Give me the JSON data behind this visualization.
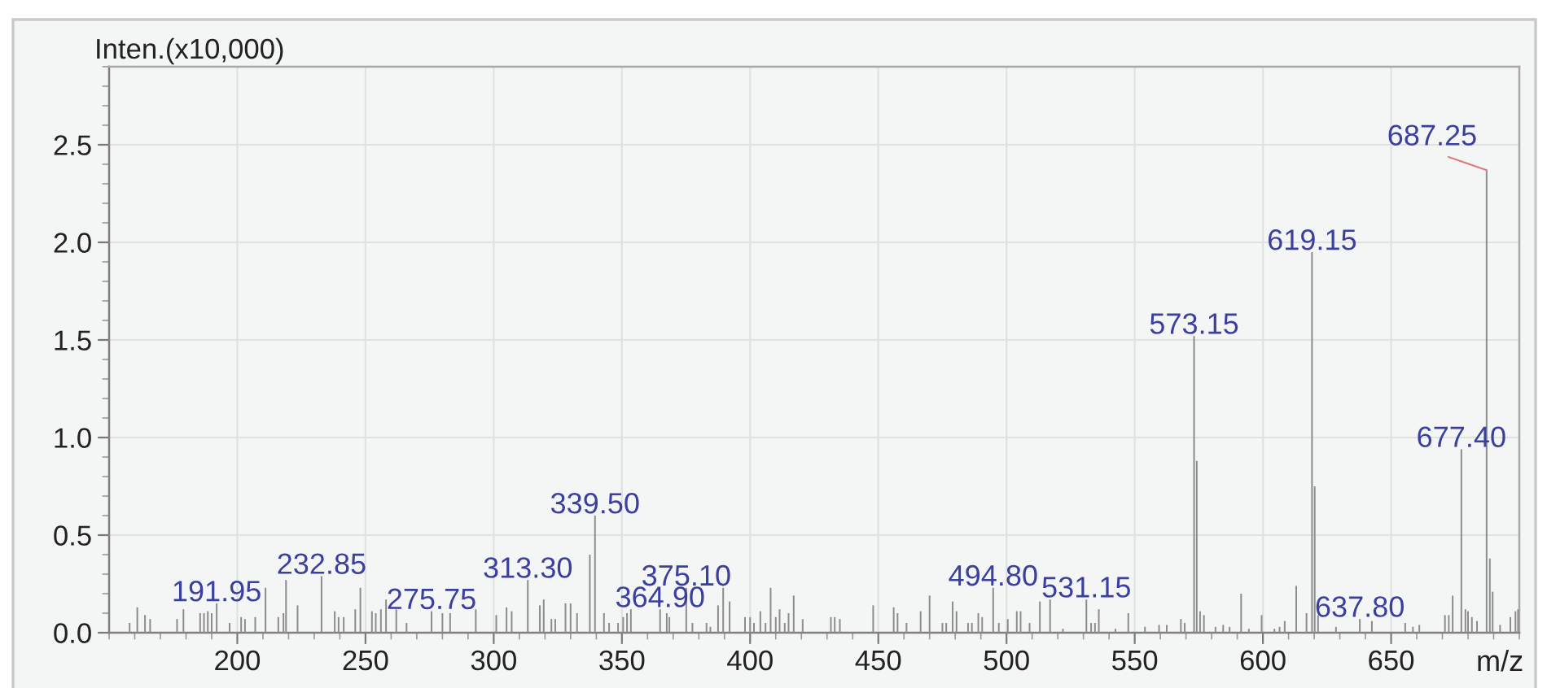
{
  "chart_data": {
    "type": "bar",
    "xlabel": "m/z",
    "ylabel": "Inten.(x10,000)",
    "x": [
      158,
      161,
      164,
      166,
      176.5,
      179,
      185.5,
      187,
      188.5,
      190,
      191.95,
      197,
      201.5,
      203,
      207,
      211,
      216,
      218,
      219,
      223.5,
      232.85,
      238,
      239.5,
      241.5,
      246,
      248,
      252.5,
      254,
      256,
      258,
      262,
      266,
      275.75,
      280,
      283,
      293,
      301,
      305,
      307,
      313.3,
      318,
      319.5,
      322.5,
      324,
      328,
      330,
      332.5,
      337.5,
      339.5,
      343,
      345,
      348.5,
      350.5,
      352,
      353.5,
      364.9,
      367.5,
      368.5,
      375.1,
      377.5,
      383,
      384.5,
      387.5,
      389.5,
      392,
      398,
      400,
      401.5,
      404,
      406,
      408,
      410,
      411.5,
      413.5,
      415,
      417,
      420.5,
      431.5,
      433,
      435,
      448,
      456,
      457.5,
      461,
      466.5,
      470,
      475,
      476.5,
      479,
      480.5,
      485,
      486.5,
      489,
      490.5,
      494.8,
      497,
      500.5,
      504,
      505.5,
      509,
      513,
      517,
      522,
      531.15,
      533,
      534.5,
      536,
      542.5,
      547.5,
      554,
      559.5,
      562.5,
      568,
      569.5,
      573.15,
      574.2,
      575.5,
      577,
      581.5,
      584.5,
      587,
      591.5,
      594.5,
      599.5,
      604.5,
      606.5,
      608.5,
      613,
      617,
      619.15,
      620.2,
      621.5,
      628.5,
      637.8,
      642.5,
      655.5,
      658.5,
      661,
      671,
      672.5,
      674,
      677.4,
      679,
      680,
      681.5,
      683.5,
      687.25,
      688.5,
      689.6,
      692.5,
      696.5,
      698.5,
      699.5
    ],
    "values": [
      0.05,
      0.13,
      0.09,
      0.07,
      0.07,
      0.12,
      0.1,
      0.1,
      0.11,
      0.1,
      0.15,
      0.05,
      0.08,
      0.07,
      0.08,
      0.23,
      0.08,
      0.1,
      0.27,
      0.14,
      0.29,
      0.11,
      0.08,
      0.08,
      0.12,
      0.23,
      0.11,
      0.1,
      0.12,
      0.17,
      0.12,
      0.05,
      0.11,
      0.1,
      0.1,
      0.12,
      0.09,
      0.13,
      0.11,
      0.27,
      0.14,
      0.17,
      0.07,
      0.07,
      0.15,
      0.15,
      0.1,
      0.4,
      0.6,
      0.1,
      0.05,
      0.05,
      0.08,
      0.1,
      0.12,
      0.12,
      0.1,
      0.08,
      0.23,
      0.05,
      0.05,
      0.03,
      0.14,
      0.23,
      0.16,
      0.08,
      0.08,
      0.05,
      0.11,
      0.05,
      0.23,
      0.08,
      0.12,
      0.05,
      0.1,
      0.19,
      0.07,
      0.08,
      0.08,
      0.07,
      0.14,
      0.13,
      0.1,
      0.05,
      0.11,
      0.19,
      0.05,
      0.05,
      0.16,
      0.11,
      0.05,
      0.05,
      0.1,
      0.08,
      0.23,
      0.05,
      0.07,
      0.11,
      0.11,
      0.05,
      0.16,
      0.17,
      0.02,
      0.17,
      0.05,
      0.05,
      0.12,
      0.02,
      0.1,
      0.03,
      0.04,
      0.04,
      0.07,
      0.05,
      1.52,
      0.88,
      0.11,
      0.09,
      0.03,
      0.04,
      0.03,
      0.2,
      0.02,
      0.09,
      0.02,
      0.03,
      0.06,
      0.24,
      0.1,
      1.95,
      0.75,
      0.09,
      0.03,
      0.07,
      0.06,
      0.05,
      0.03,
      0.04,
      0.09,
      0.09,
      0.19,
      0.94,
      0.12,
      0.11,
      0.08,
      0.06,
      2.37,
      0.38,
      0.21,
      0.04,
      0.08,
      0.11,
      0.12
    ],
    "color": "#8c8c8c",
    "xlim": [
      150,
      700
    ],
    "xticks": [
      200,
      250,
      300,
      350,
      400,
      450,
      500,
      550,
      600,
      650
    ],
    "ylim": [
      0,
      2.9
    ],
    "yticks": [
      {
        "value": 0,
        "label": "0.0"
      },
      {
        "value": 0.5,
        "label": "0.5"
      },
      {
        "value": 1,
        "label": "1.0"
      },
      {
        "value": 1.5,
        "label": "1.5"
      },
      {
        "value": 2,
        "label": "2.0"
      },
      {
        "value": 2.5,
        "label": "2.5"
      }
    ],
    "grid": true,
    "annotations": [
      {
        "text": "191.95",
        "x": 191.95,
        "y": 0.15
      },
      {
        "text": "232.85",
        "x": 232.85,
        "y": 0.29
      },
      {
        "text": "275.75",
        "x": 275.75,
        "y": 0.11
      },
      {
        "text": "313.30",
        "x": 313.3,
        "y": 0.27
      },
      {
        "text": "339.50",
        "x": 339.5,
        "y": 0.6
      },
      {
        "text": "364.90",
        "x": 364.9,
        "y": 0.12
      },
      {
        "text": "375.10",
        "x": 375.1,
        "y": 0.23
      },
      {
        "text": "494.80",
        "x": 494.8,
        "y": 0.23
      },
      {
        "text": "531.15",
        "x": 531.15,
        "y": 0.17
      },
      {
        "text": "573.15",
        "x": 573.15,
        "y": 1.52
      },
      {
        "text": "619.15",
        "x": 619.15,
        "y": 1.95
      },
      {
        "text": "637.80",
        "x": 637.8,
        "y": 0.07
      },
      {
        "text": "677.40",
        "x": 677.4,
        "y": 0.94
      },
      {
        "text": "687.25",
        "x": 687.25,
        "y": 2.37
      }
    ]
  }
}
